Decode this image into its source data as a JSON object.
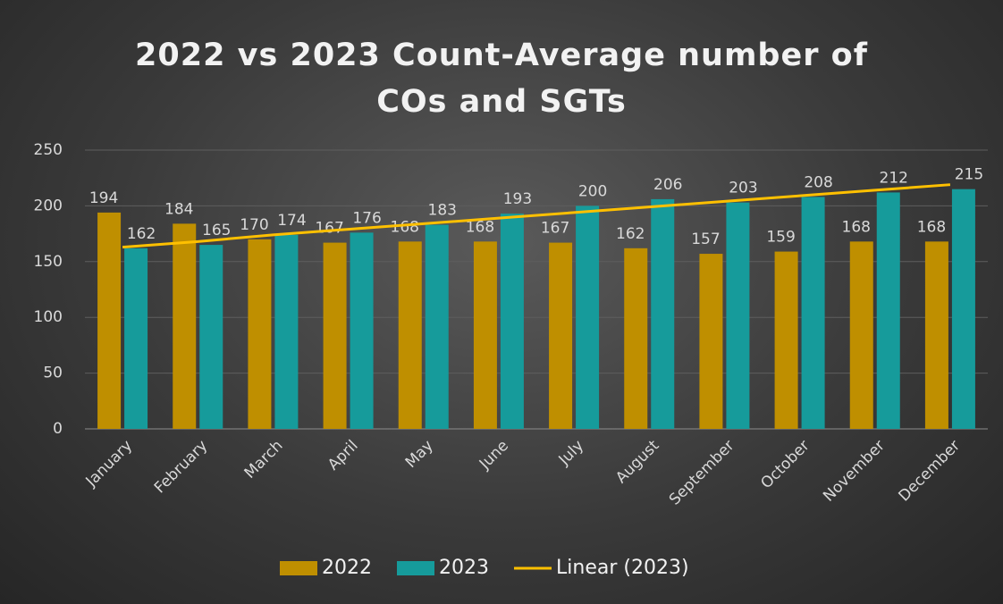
{
  "chart_data": {
    "type": "bar",
    "title": "2022 vs 2023 Count-Average number of COs and SGTs",
    "categories": [
      "January",
      "February",
      "March",
      "April",
      "May",
      "June",
      "July",
      "August",
      "September",
      "October",
      "November",
      "December"
    ],
    "series": [
      {
        "name": "2022",
        "color": "#bf8f00",
        "values": [
          194,
          184,
          170,
          167,
          168,
          168,
          167,
          162,
          157,
          159,
          168,
          168
        ]
      },
      {
        "name": "2023",
        "color": "#169b9b",
        "values": [
          162,
          165,
          174,
          176,
          183,
          193,
          200,
          206,
          203,
          208,
          212,
          215
        ]
      },
      {
        "name": "Linear (2023)",
        "type": "line",
        "color": "#ffc000",
        "values": [
          163,
          168,
          174,
          179,
          184,
          189,
          194,
          199,
          204,
          209,
          214,
          219
        ]
      }
    ],
    "ylim": [
      0,
      250
    ],
    "yticks": [
      0,
      50,
      100,
      150,
      200,
      250
    ],
    "grid": true,
    "legend": "bottom"
  }
}
